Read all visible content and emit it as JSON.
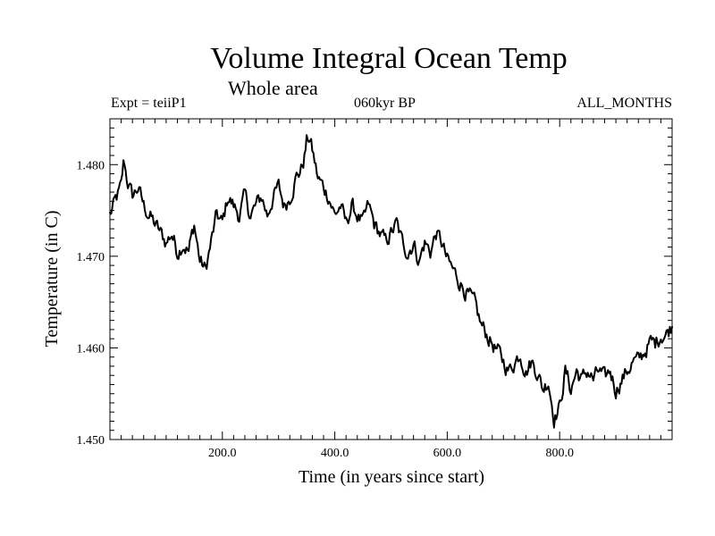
{
  "chart_data": {
    "type": "line",
    "title": "Volume Integral Ocean Temp",
    "subtitle": "Whole area",
    "annotations": {
      "left": "Expt = teiiP1",
      "center": "060kyr BP",
      "right": "ALL_MONTHS"
    },
    "xlabel": "Time (in years since start)",
    "ylabel": "Temperature (in C)",
    "xlim": [
      0,
      1000
    ],
    "ylim": [
      1.45,
      1.485
    ],
    "xticks": [
      {
        "value": 200,
        "label": "200.0"
      },
      {
        "value": 400,
        "label": "400.0"
      },
      {
        "value": 600,
        "label": "600.0"
      },
      {
        "value": 800,
        "label": "800.0"
      }
    ],
    "yticks": [
      {
        "value": 1.45,
        "label": "1.450"
      },
      {
        "value": 1.46,
        "label": "1.460"
      },
      {
        "value": 1.47,
        "label": "1.470"
      },
      {
        "value": 1.48,
        "label": "1.480"
      }
    ],
    "grid": false,
    "color": "#000000",
    "series": [
      {
        "x": [
          0,
          10,
          20,
          25,
          30,
          40,
          50,
          60,
          70,
          80,
          90,
          100,
          110,
          120,
          130,
          140,
          150,
          160,
          170,
          180,
          190,
          200,
          210,
          220,
          230,
          240,
          250,
          260,
          270,
          280,
          290,
          300,
          310,
          320,
          330,
          340,
          345,
          350,
          355,
          360,
          370,
          380,
          390,
          400,
          410,
          420,
          430,
          440,
          450,
          460,
          470,
          480,
          490,
          500,
          510,
          520,
          530,
          540,
          550,
          560,
          570,
          580,
          590,
          600,
          610,
          620,
          630,
          640,
          650,
          660,
          670,
          680,
          690,
          700,
          710,
          720,
          730,
          740,
          750,
          760,
          770,
          780,
          790,
          800,
          810,
          820,
          830,
          840,
          850,
          860,
          870,
          880,
          890,
          900,
          910,
          920,
          930,
          940,
          950,
          960,
          970,
          980,
          990,
          1000
        ],
        "y": [
          1.4745,
          1.476,
          1.4775,
          1.4805,
          1.4785,
          1.4765,
          1.4775,
          1.4755,
          1.4745,
          1.4735,
          1.4725,
          1.4715,
          1.4725,
          1.4705,
          1.4715,
          1.4705,
          1.4735,
          1.4695,
          1.4685,
          1.4715,
          1.4745,
          1.4735,
          1.4765,
          1.4755,
          1.4745,
          1.4765,
          1.4745,
          1.4755,
          1.4765,
          1.4745,
          1.4765,
          1.4775,
          1.4755,
          1.4765,
          1.4785,
          1.4795,
          1.4805,
          1.4825,
          1.483,
          1.4815,
          1.4785,
          1.4775,
          1.4765,
          1.4745,
          1.4755,
          1.4735,
          1.4755,
          1.4745,
          1.4735,
          1.4755,
          1.4735,
          1.4725,
          1.4715,
          1.4725,
          1.4735,
          1.4715,
          1.4705,
          1.4715,
          1.4695,
          1.4715,
          1.4705,
          1.4725,
          1.4715,
          1.4695,
          1.4685,
          1.4675,
          1.4665,
          1.4655,
          1.4645,
          1.4625,
          1.4615,
          1.4605,
          1.4595,
          1.4585,
          1.4575,
          1.4585,
          1.4595,
          1.4575,
          1.4585,
          1.4575,
          1.4555,
          1.4565,
          1.4525,
          1.4535,
          1.4575,
          1.4555,
          1.4575,
          1.4565,
          1.4575,
          1.4565,
          1.4575,
          1.4565,
          1.4575,
          1.4555,
          1.4565,
          1.4575,
          1.4585,
          1.4585,
          1.4595,
          1.4605,
          1.4605,
          1.4615,
          1.4615,
          1.4625
        ]
      }
    ]
  }
}
